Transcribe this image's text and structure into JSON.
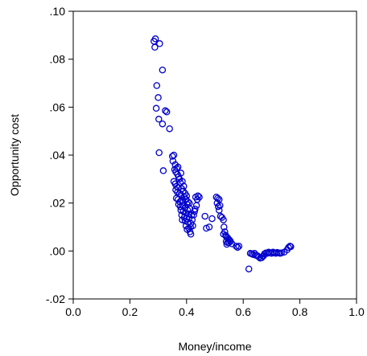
{
  "chart_data": {
    "type": "scatter",
    "xlabel": "Money/income",
    "ylabel": "Opportunity cost",
    "xlim": [
      0.0,
      1.0
    ],
    "ylim": [
      -0.02,
      0.1
    ],
    "x_ticks": [
      "0.0",
      "0.2",
      "0.4",
      "0.6",
      "0.8",
      "1.0"
    ],
    "x_tick_values": [
      0.0,
      0.2,
      0.4,
      0.6,
      0.8,
      1.0
    ],
    "y_ticks": [
      "-.02",
      ".00",
      ".02",
      ".04",
      ".06",
      ".08",
      ".10"
    ],
    "y_tick_values": [
      -0.02,
      0.0,
      0.02,
      0.04,
      0.06,
      0.08,
      0.1
    ],
    "grid": false,
    "marker": "open-circle",
    "marker_color": "#0000cc",
    "points": [
      [
        0.285,
        0.0875
      ],
      [
        0.29,
        0.0885
      ],
      [
        0.288,
        0.085
      ],
      [
        0.305,
        0.0865
      ],
      [
        0.315,
        0.0755
      ],
      [
        0.295,
        0.069
      ],
      [
        0.3,
        0.064
      ],
      [
        0.325,
        0.0585
      ],
      [
        0.33,
        0.058
      ],
      [
        0.293,
        0.0595
      ],
      [
        0.302,
        0.055
      ],
      [
        0.315,
        0.053
      ],
      [
        0.34,
        0.051
      ],
      [
        0.303,
        0.041
      ],
      [
        0.318,
        0.0335
      ],
      [
        0.35,
        0.0395
      ],
      [
        0.355,
        0.04
      ],
      [
        0.352,
        0.0375
      ],
      [
        0.36,
        0.036
      ],
      [
        0.358,
        0.034
      ],
      [
        0.365,
        0.0345
      ],
      [
        0.37,
        0.035
      ],
      [
        0.362,
        0.033
      ],
      [
        0.368,
        0.032
      ],
      [
        0.372,
        0.031
      ],
      [
        0.38,
        0.0325
      ],
      [
        0.375,
        0.03
      ],
      [
        0.355,
        0.029
      ],
      [
        0.36,
        0.028
      ],
      [
        0.365,
        0.027
      ],
      [
        0.37,
        0.0265
      ],
      [
        0.378,
        0.0285
      ],
      [
        0.385,
        0.029
      ],
      [
        0.39,
        0.027
      ],
      [
        0.383,
        0.026
      ],
      [
        0.362,
        0.0255
      ],
      [
        0.368,
        0.0245
      ],
      [
        0.375,
        0.024
      ],
      [
        0.38,
        0.0235
      ],
      [
        0.388,
        0.025
      ],
      [
        0.395,
        0.024
      ],
      [
        0.4,
        0.023
      ],
      [
        0.392,
        0.0225
      ],
      [
        0.364,
        0.022
      ],
      [
        0.37,
        0.0215
      ],
      [
        0.376,
        0.0205
      ],
      [
        0.384,
        0.021
      ],
      [
        0.398,
        0.0215
      ],
      [
        0.405,
        0.0205
      ],
      [
        0.41,
        0.02
      ],
      [
        0.402,
        0.0195
      ],
      [
        0.372,
        0.0195
      ],
      [
        0.378,
        0.0185
      ],
      [
        0.386,
        0.019
      ],
      [
        0.394,
        0.018
      ],
      [
        0.38,
        0.017
      ],
      [
        0.388,
        0.0165
      ],
      [
        0.396,
        0.016
      ],
      [
        0.404,
        0.017
      ],
      [
        0.412,
        0.0175
      ],
      [
        0.408,
        0.0155
      ],
      [
        0.383,
        0.015
      ],
      [
        0.392,
        0.014
      ],
      [
        0.4,
        0.0135
      ],
      [
        0.41,
        0.014
      ],
      [
        0.418,
        0.015
      ],
      [
        0.385,
        0.013
      ],
      [
        0.395,
        0.0125
      ],
      [
        0.405,
        0.012
      ],
      [
        0.415,
        0.0115
      ],
      [
        0.42,
        0.013
      ],
      [
        0.398,
        0.0105
      ],
      [
        0.408,
        0.0095
      ],
      [
        0.414,
        0.01
      ],
      [
        0.402,
        0.009
      ],
      [
        0.412,
        0.008
      ],
      [
        0.415,
        0.007
      ],
      [
        0.425,
        0.015
      ],
      [
        0.43,
        0.0175
      ],
      [
        0.428,
        0.0165
      ],
      [
        0.435,
        0.019
      ],
      [
        0.438,
        0.0215
      ],
      [
        0.432,
        0.0225
      ],
      [
        0.44,
        0.023
      ],
      [
        0.445,
        0.0225
      ],
      [
        0.422,
        0.0105
      ],
      [
        0.465,
        0.0145
      ],
      [
        0.47,
        0.0095
      ],
      [
        0.48,
        0.01
      ],
      [
        0.49,
        0.0135
      ],
      [
        0.505,
        0.0225
      ],
      [
        0.51,
        0.022
      ],
      [
        0.515,
        0.0215
      ],
      [
        0.508,
        0.02
      ],
      [
        0.512,
        0.0185
      ],
      [
        0.518,
        0.019
      ],
      [
        0.515,
        0.017
      ],
      [
        0.52,
        0.0145
      ],
      [
        0.525,
        0.014
      ],
      [
        0.53,
        0.013
      ],
      [
        0.532,
        0.01
      ],
      [
        0.535,
        0.008
      ],
      [
        0.53,
        0.007
      ],
      [
        0.538,
        0.0065
      ],
      [
        0.54,
        0.006
      ],
      [
        0.545,
        0.0055
      ],
      [
        0.548,
        0.005
      ],
      [
        0.552,
        0.0045
      ],
      [
        0.54,
        0.004
      ],
      [
        0.545,
        0.0035
      ],
      [
        0.55,
        0.0035
      ],
      [
        0.555,
        0.004
      ],
      [
        0.56,
        0.003
      ],
      [
        0.542,
        0.0028
      ],
      [
        0.575,
        0.002
      ],
      [
        0.58,
        0.0015
      ],
      [
        0.585,
        0.002
      ],
      [
        0.62,
        -0.0075
      ],
      [
        0.625,
        -0.001
      ],
      [
        0.63,
        -0.0012
      ],
      [
        0.635,
        -0.0015
      ],
      [
        0.64,
        -0.001
      ],
      [
        0.645,
        -0.0018
      ],
      [
        0.65,
        -0.002
      ],
      [
        0.655,
        -0.0025
      ],
      [
        0.66,
        -0.003
      ],
      [
        0.665,
        -0.0028
      ],
      [
        0.67,
        -0.0022
      ],
      [
        0.672,
        -0.002
      ],
      [
        0.675,
        -0.0012
      ],
      [
        0.68,
        -0.0008
      ],
      [
        0.685,
        -0.001
      ],
      [
        0.69,
        -0.0005
      ],
      [
        0.695,
        -0.0008
      ],
      [
        0.7,
        -0.001
      ],
      [
        0.705,
        -0.0005
      ],
      [
        0.71,
        -0.0008
      ],
      [
        0.715,
        -0.001
      ],
      [
        0.72,
        -0.0006
      ],
      [
        0.725,
        -0.0008
      ],
      [
        0.73,
        -0.001
      ],
      [
        0.735,
        -0.0008
      ],
      [
        0.745,
        -0.0005
      ],
      [
        0.755,
        0.0005
      ],
      [
        0.76,
        0.0015
      ],
      [
        0.765,
        0.002
      ],
      [
        0.768,
        0.0018
      ]
    ]
  }
}
